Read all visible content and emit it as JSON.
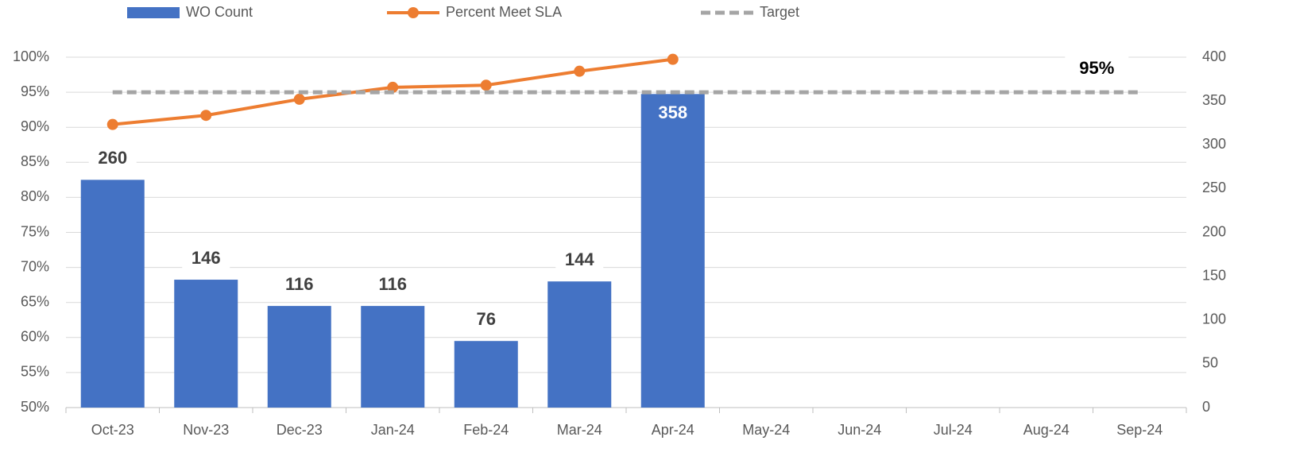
{
  "chart_data": {
    "type": "bar",
    "categories": [
      "Oct-23",
      "Nov-23",
      "Dec-23",
      "Jan-24",
      "Feb-24",
      "Mar-24",
      "Apr-24",
      "May-24",
      "Jun-24",
      "Jul-24",
      "Aug-24",
      "Sep-24"
    ],
    "series": [
      {
        "name": "WO Count",
        "type": "bar",
        "axis": "y2",
        "color": "#4472c4",
        "values": [
          260,
          146,
          116,
          116,
          76,
          144,
          358,
          null,
          null,
          null,
          null,
          null
        ]
      },
      {
        "name": "Percent Meet SLA",
        "type": "line",
        "axis": "y",
        "color": "#ed7d31",
        "values": [
          90.4,
          91.7,
          94.0,
          95.7,
          96.0,
          98.0,
          99.7,
          null,
          null,
          null,
          null,
          null
        ]
      },
      {
        "name": "Target",
        "type": "dashed",
        "axis": "y",
        "color": "#a5a5a5",
        "values": [
          95,
          95,
          95,
          95,
          95,
          95,
          95,
          95,
          95,
          95,
          95,
          95
        ],
        "value_labels": [
          null,
          null,
          null,
          null,
          null,
          null,
          null,
          null,
          null,
          null,
          null,
          "95%"
        ]
      }
    ],
    "ylim": [
      50,
      100
    ],
    "yticks": [
      {
        "value": 50,
        "label": "50%"
      },
      {
        "value": 55,
        "label": "55%"
      },
      {
        "value": 60,
        "label": "60%"
      },
      {
        "value": 65,
        "label": "65%"
      },
      {
        "value": 70,
        "label": "70%"
      },
      {
        "value": 75,
        "label": "75%"
      },
      {
        "value": 80,
        "label": "80%"
      },
      {
        "value": 85,
        "label": "85%"
      },
      {
        "value": 90,
        "label": "90%"
      },
      {
        "value": 95,
        "label": "95%"
      },
      {
        "value": 100,
        "label": "100%"
      }
    ],
    "y2lim": [
      0,
      400
    ],
    "y2ticks": [
      0,
      50,
      100,
      150,
      200,
      250,
      300,
      350,
      400
    ],
    "grid": true,
    "legend": "top"
  }
}
